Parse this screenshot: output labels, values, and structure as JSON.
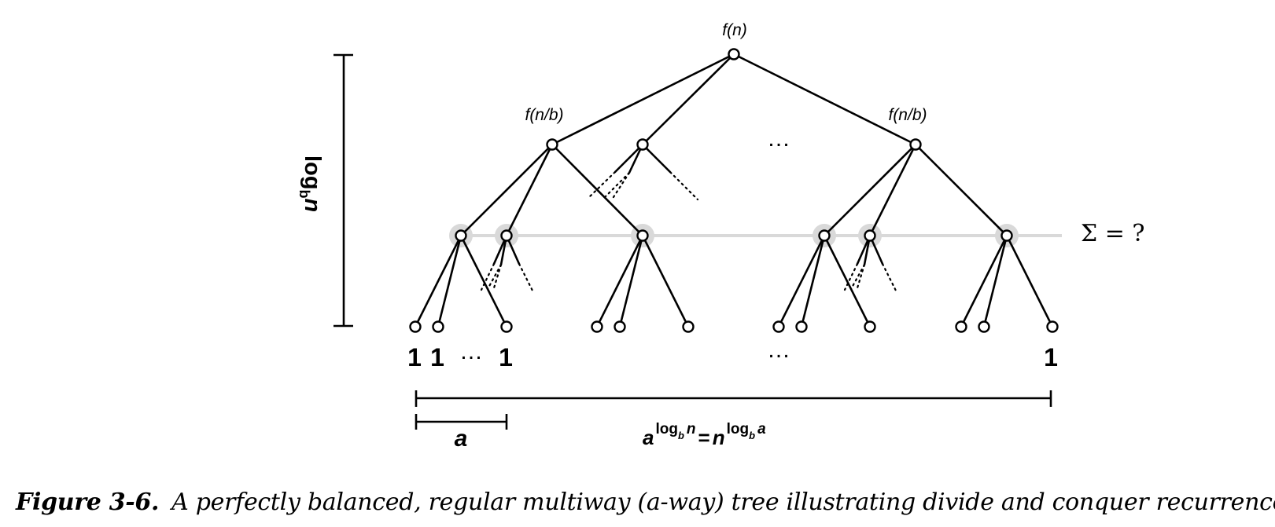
{
  "labels": {
    "root": "f(n)",
    "child_left": "f(n/b)",
    "child_right": "f(n/b)",
    "ellipsis": "…",
    "height_log": "log",
    "height_base": "b",
    "height_n": "n",
    "sum": "Σ = ?",
    "leaf_one": "1",
    "width_a": "a",
    "leaves_formula": {
      "a": "a",
      "log": "log",
      "b": "b",
      "n": "n",
      "eq": "=",
      "n2": "n",
      "log2": "log",
      "b2": "b",
      "a2": "a"
    }
  },
  "caption": {
    "label": "Figure 3-6.",
    "text": "A perfectly balanced, regular multiway (a-way) tree illustrating divide and conquer recurrences"
  }
}
